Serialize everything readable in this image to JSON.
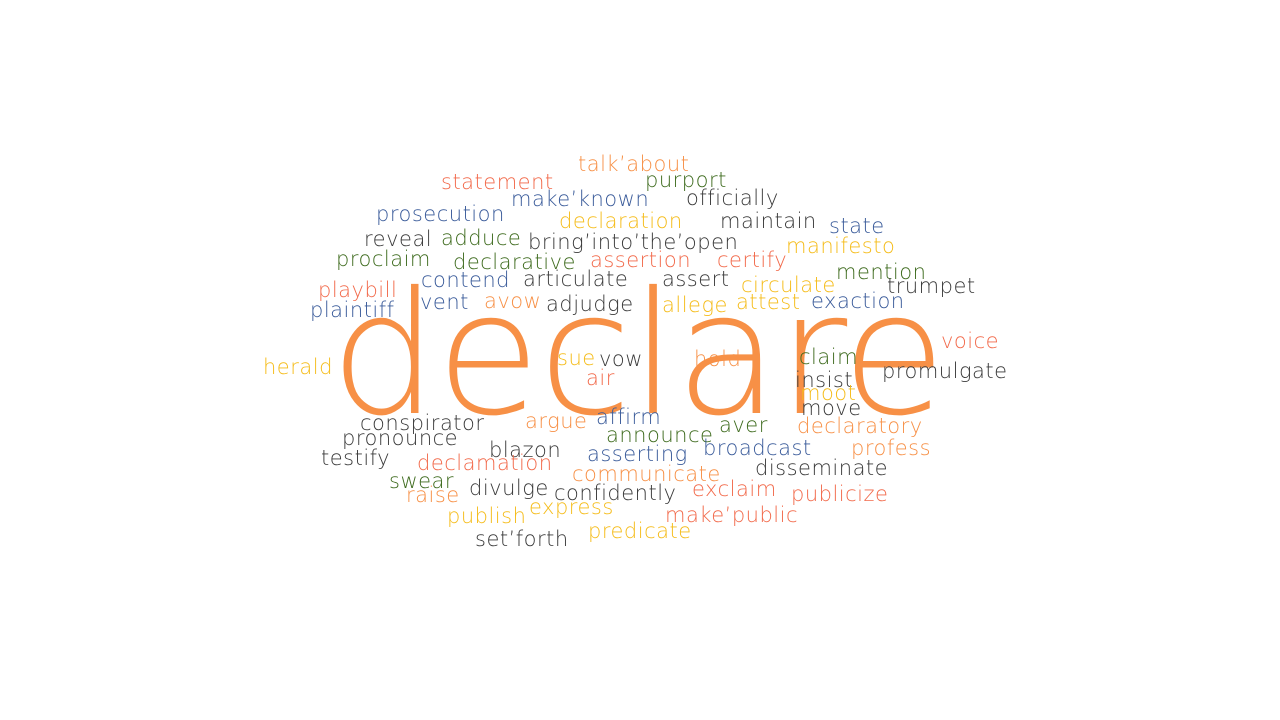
{
  "colors": {
    "orange": "#F79046",
    "red_orange": "#F26A4B",
    "yellow": "#F5BC1A",
    "green": "#3E6B1E",
    "blue": "#3A5B9A",
    "dark": "#3A3A3A"
  },
  "main_word": {
    "text": "declare",
    "color": "#F79046"
  },
  "words": [
    {
      "text": "talk’about",
      "color": "#F79046"
    },
    {
      "text": "statement",
      "color": "#F26A4B"
    },
    {
      "text": "purport",
      "color": "#3E6B1E"
    },
    {
      "text": "make’known",
      "color": "#3A5B9A"
    },
    {
      "text": "officially",
      "color": "#3A3A3A"
    },
    {
      "text": "prosecution",
      "color": "#3A5B9A"
    },
    {
      "text": "declaration",
      "color": "#F5BC1A"
    },
    {
      "text": "maintain",
      "color": "#3A3A3A"
    },
    {
      "text": "state",
      "color": "#3A5B9A"
    },
    {
      "text": "reveal",
      "color": "#3A3A3A"
    },
    {
      "text": "adduce",
      "color": "#3E6B1E"
    },
    {
      "text": "bring’into’the’open",
      "color": "#3A3A3A"
    },
    {
      "text": "manifesto",
      "color": "#F5BC1A"
    },
    {
      "text": "proclaim",
      "color": "#3E6B1E"
    },
    {
      "text": "declarative",
      "color": "#3E6B1E"
    },
    {
      "text": "assertion",
      "color": "#F26A4B"
    },
    {
      "text": "certify",
      "color": "#F26A4B"
    },
    {
      "text": "mention",
      "color": "#3E6B1E"
    },
    {
      "text": "playbill",
      "color": "#F26A4B"
    },
    {
      "text": "contend",
      "color": "#3A5B9A"
    },
    {
      "text": "articulate",
      "color": "#3A3A3A"
    },
    {
      "text": "assert",
      "color": "#3A3A3A"
    },
    {
      "text": "circulate",
      "color": "#F5BC1A"
    },
    {
      "text": "trumpet",
      "color": "#3A3A3A"
    },
    {
      "text": "plaintiff",
      "color": "#3A5B9A"
    },
    {
      "text": "vent",
      "color": "#3A5B9A"
    },
    {
      "text": "avow",
      "color": "#F79046"
    },
    {
      "text": "adjudge",
      "color": "#3A3A3A"
    },
    {
      "text": "allege",
      "color": "#F5BC1A"
    },
    {
      "text": "attest",
      "color": "#F5BC1A"
    },
    {
      "text": "exaction",
      "color": "#3A5B9A"
    },
    {
      "text": "voice",
      "color": "#F26A4B"
    },
    {
      "text": "herald",
      "color": "#F5BC1A"
    },
    {
      "text": "sue",
      "color": "#F5BC1A"
    },
    {
      "text": "vow",
      "color": "#3A3A3A"
    },
    {
      "text": "hold",
      "color": "#F79046"
    },
    {
      "text": "claim",
      "color": "#3E6B1E"
    },
    {
      "text": "promulgate",
      "color": "#3A3A3A"
    },
    {
      "text": "air",
      "color": "#F26A4B"
    },
    {
      "text": "insist",
      "color": "#3A3A3A"
    },
    {
      "text": "moot",
      "color": "#F5BC1A"
    },
    {
      "text": "move",
      "color": "#3A3A3A"
    },
    {
      "text": "conspirator",
      "color": "#3A3A3A"
    },
    {
      "text": "argue",
      "color": "#F79046"
    },
    {
      "text": "affirm",
      "color": "#3A5B9A"
    },
    {
      "text": "aver",
      "color": "#3E6B1E"
    },
    {
      "text": "declaratory",
      "color": "#F79046"
    },
    {
      "text": "pronounce",
      "color": "#3A3A3A"
    },
    {
      "text": "announce",
      "color": "#3E6B1E"
    },
    {
      "text": "blazon",
      "color": "#3A3A3A"
    },
    {
      "text": "broadcast",
      "color": "#3A5B9A"
    },
    {
      "text": "profess",
      "color": "#F79046"
    },
    {
      "text": "testify",
      "color": "#3A3A3A"
    },
    {
      "text": "asserting",
      "color": "#3A5B9A"
    },
    {
      "text": "declamation",
      "color": "#F26A4B"
    },
    {
      "text": "disseminate",
      "color": "#3A3A3A"
    },
    {
      "text": "communicate",
      "color": "#F79046"
    },
    {
      "text": "swear",
      "color": "#3E6B1E"
    },
    {
      "text": "exclaim",
      "color": "#F26A4B"
    },
    {
      "text": "divulge",
      "color": "#3A3A3A"
    },
    {
      "text": "raise",
      "color": "#F79046"
    },
    {
      "text": "confidently",
      "color": "#3A3A3A"
    },
    {
      "text": "publicize",
      "color": "#F26A4B"
    },
    {
      "text": "express",
      "color": "#F5BC1A"
    },
    {
      "text": "publish",
      "color": "#F5BC1A"
    },
    {
      "text": "make’public",
      "color": "#F26A4B"
    },
    {
      "text": "predicate",
      "color": "#F5BC1A"
    },
    {
      "text": "set’forth",
      "color": "#3A3A3A"
    }
  ]
}
